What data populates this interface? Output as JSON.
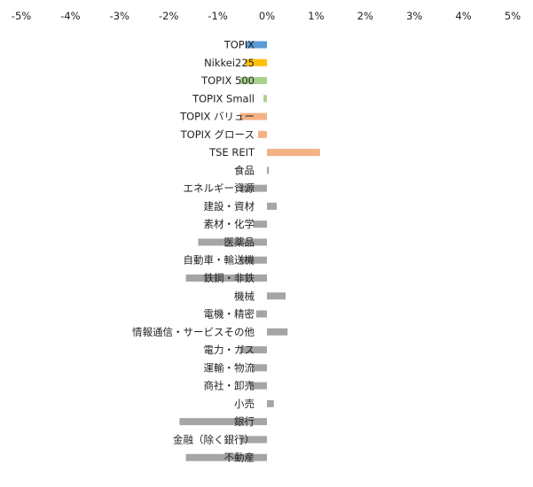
{
  "chart_data": {
    "type": "bar",
    "orientation": "horizontal",
    "title": "",
    "xlabel": "",
    "ylabel": "",
    "xlim": [
      -5,
      5
    ],
    "x_ticks": [
      {
        "value": -5,
        "label": "-5%"
      },
      {
        "value": -4,
        "label": "-4%"
      },
      {
        "value": -3,
        "label": "-3%"
      },
      {
        "value": -2,
        "label": "-2%"
      },
      {
        "value": -1,
        "label": "-1%"
      },
      {
        "value": 0,
        "label": "0%"
      },
      {
        "value": 1,
        "label": "1%"
      },
      {
        "value": 2,
        "label": "2%"
      },
      {
        "value": 3,
        "label": "3%"
      },
      {
        "value": 4,
        "label": "4%"
      },
      {
        "value": 5,
        "label": "5%"
      }
    ],
    "x_axis_position": "top",
    "grid": false,
    "legend": "none",
    "categories": [
      "TOPIX",
      "Nikkei225",
      "TOPIX 500",
      "TOPIX Small",
      "TOPIX バリュー",
      "TOPIX グロース",
      "TSE REIT",
      "食品",
      "エネルギー資源",
      "建設・資材",
      "素材・化学",
      "医薬品",
      "自動車・輸送機",
      "鉄鋼・非鉄",
      "機械",
      "電機・精密",
      "情報通信・サービスその他",
      "電力・ガス",
      "運輸・物流",
      "商社・卸売",
      "小売",
      "銀行",
      "金融（除く銀行）",
      "不動産"
    ],
    "values": [
      -0.42,
      -0.44,
      -0.55,
      -0.07,
      -0.55,
      -0.18,
      1.08,
      0.04,
      -0.55,
      0.2,
      -0.28,
      -1.4,
      -0.55,
      -1.65,
      0.38,
      -0.22,
      0.42,
      -0.55,
      -0.3,
      -0.35,
      0.14,
      -1.78,
      -0.55,
      -1.65
    ],
    "colors": [
      "#5b9bd5",
      "#ffc000",
      "#a9d18e",
      "#a9d18e",
      "#f4b183",
      "#f4b183",
      "#f4b183",
      "#a5a5a5",
      "#a5a5a5",
      "#a5a5a5",
      "#a5a5a5",
      "#a5a5a5",
      "#a5a5a5",
      "#a5a5a5",
      "#a5a5a5",
      "#a5a5a5",
      "#a5a5a5",
      "#a5a5a5",
      "#a5a5a5",
      "#a5a5a5",
      "#a5a5a5",
      "#a5a5a5",
      "#a5a5a5",
      "#a5a5a5"
    ]
  }
}
